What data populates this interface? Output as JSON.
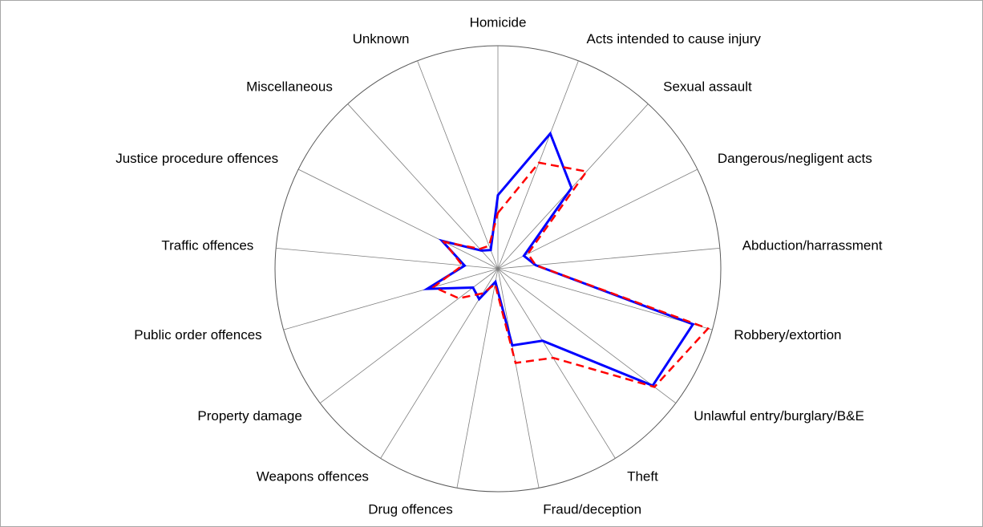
{
  "chart_data": {
    "type": "radar",
    "categories": [
      "Homicide",
      "Acts intended to cause injury",
      "Sexual assault",
      "Dangerous/negligent acts",
      "Abduction/harrassment",
      "Robbery/extortion",
      "Unlawful entry/burglary/B&E",
      "Theft",
      "Fraud/deception",
      "Drug offences",
      "Weapons offences",
      "Property damage",
      "Public order offences",
      "Traffic offences",
      "Justice procedure offences",
      "Miscellaneous",
      "Unknown"
    ],
    "series": [
      {
        "color": "#0000ff",
        "line_style": "solid",
        "values": [
          33,
          65,
          49,
          13,
          17,
          91,
          87,
          38,
          35,
          6,
          16,
          14,
          33,
          15,
          28,
          11,
          9
        ]
      },
      {
        "color": "#ff0000",
        "line_style": "dashed",
        "values": [
          25,
          51,
          59,
          15,
          17,
          98,
          88,
          47,
          43,
          7,
          13,
          22,
          30,
          16,
          27,
          12,
          11
        ]
      }
    ],
    "ylim": [
      0,
      100
    ]
  }
}
